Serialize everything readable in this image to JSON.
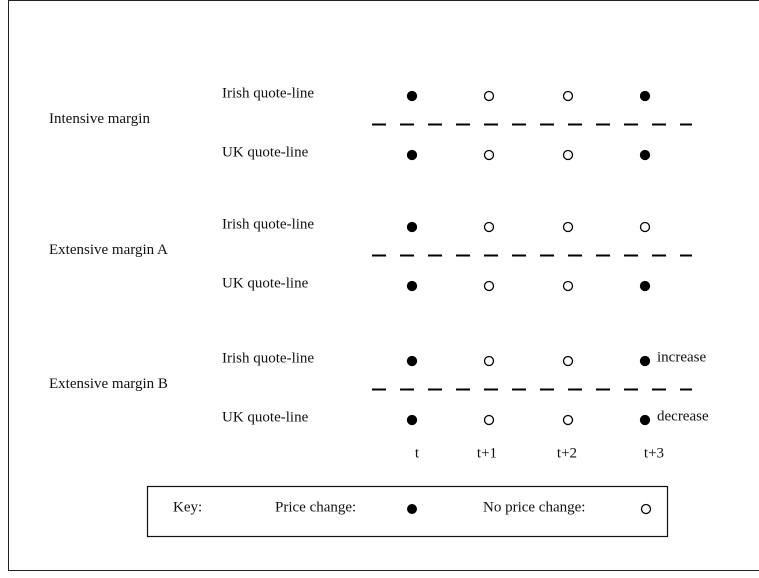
{
  "groups": [
    {
      "label": "Intensive margin",
      "rows": [
        {
          "label": "Irish quote-line",
          "price_change": [
            true,
            false,
            false,
            true
          ]
        },
        {
          "label": "UK quote-line",
          "price_change": [
            true,
            false,
            false,
            true
          ]
        }
      ]
    },
    {
      "label": "Extensive margin A",
      "rows": [
        {
          "label": "Irish quote-line",
          "price_change": [
            true,
            false,
            false,
            false
          ]
        },
        {
          "label": "UK quote-line",
          "price_change": [
            true,
            false,
            false,
            true
          ]
        }
      ]
    },
    {
      "label": "Extensive margin B",
      "rows": [
        {
          "label": "Irish quote-line",
          "price_change": [
            true,
            false,
            false,
            true
          ],
          "annotation": "increase"
        },
        {
          "label": "UK quote-line",
          "price_change": [
            true,
            false,
            false,
            true
          ],
          "annotation": "decrease"
        }
      ]
    }
  ],
  "periods": [
    "t",
    "t+1",
    "t+2",
    "t+3"
  ],
  "key": {
    "title": "Key:",
    "filled": "Price change:",
    "open": "No price change:"
  }
}
